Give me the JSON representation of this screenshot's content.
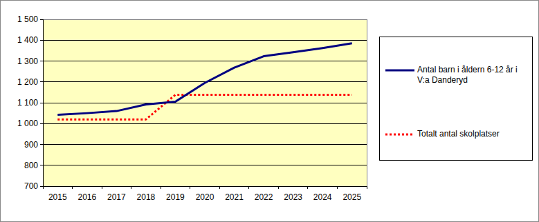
{
  "chart_data": {
    "type": "line",
    "categories": [
      "2015",
      "2016",
      "2017",
      "2018",
      "2019",
      "2020",
      "2021",
      "2022",
      "2023",
      "2024",
      "2025"
    ],
    "series": [
      {
        "name": "Antal barn i åldern 6-12 år i V:a Danderyd",
        "color": "#000080",
        "line_style": "solid",
        "values": [
          1042,
          1050,
          1060,
          1092,
          1105,
          1195,
          1268,
          1323,
          1342,
          1362,
          1385
        ]
      },
      {
        "name": "Totalt antal skolplatser",
        "color": "#ff0000",
        "line_style": "dotted",
        "values": [
          1020,
          1020,
          1020,
          1020,
          1138,
          1138,
          1138,
          1138,
          1138,
          1138,
          1138
        ]
      }
    ],
    "ylim": [
      700,
      1500
    ],
    "yticks": [
      700,
      800,
      900,
      {
        "value": 1000,
        "label": "1 000"
      },
      {
        "value": 1100,
        "label": "1 100"
      },
      {
        "value": 1200,
        "label": "1 200"
      },
      {
        "value": 1300,
        "label": "1 300"
      },
      {
        "value": 1400,
        "label": "1 400"
      },
      {
        "value": 1500,
        "label": "1 500"
      }
    ],
    "grid": true,
    "legend": "right"
  }
}
